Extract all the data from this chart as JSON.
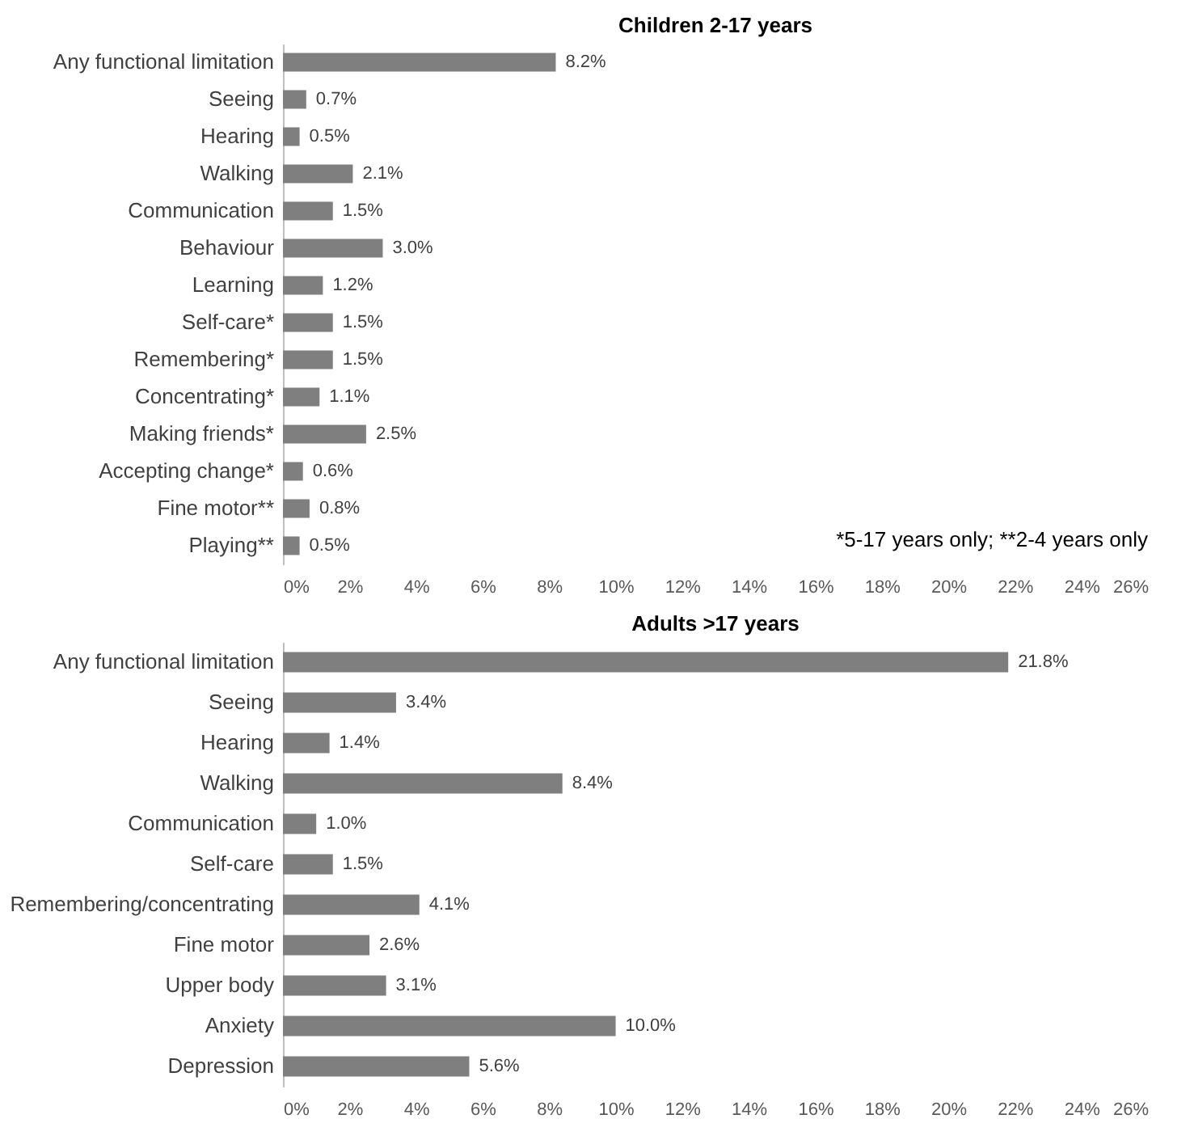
{
  "chart_data": [
    {
      "type": "bar",
      "orientation": "horizontal",
      "title": "Children 2-17 years",
      "categories": [
        "Any functional limitation",
        "Seeing",
        "Hearing",
        "Walking",
        "Communication",
        "Behaviour",
        "Learning",
        "Self-care*",
        "Remembering*",
        "Concentrating*",
        "Making friends*",
        "Accepting change*",
        "Fine motor**",
        "Playing**"
      ],
      "values": [
        8.2,
        0.7,
        0.5,
        2.1,
        1.5,
        3.0,
        1.2,
        1.5,
        1.5,
        1.1,
        2.5,
        0.6,
        0.8,
        0.5
      ],
      "value_labels": [
        "8.2%",
        "0.7%",
        "0.5%",
        "2.1%",
        "1.5%",
        "3.0%",
        "1.2%",
        "1.5%",
        "1.5%",
        "1.1%",
        "2.5%",
        "0.6%",
        "0.8%",
        "0.5%"
      ],
      "color": "#7f7f7f",
      "xlim": [
        0,
        26
      ],
      "xticks": [
        {
          "value": 0,
          "label": "0%"
        },
        {
          "value": 2,
          "label": "2%"
        },
        {
          "value": 4,
          "label": "4%"
        },
        {
          "value": 6,
          "label": "6%"
        },
        {
          "value": 8,
          "label": "8%"
        },
        {
          "value": 10,
          "label": "10%"
        },
        {
          "value": 12,
          "label": "12%"
        },
        {
          "value": 14,
          "label": "14%"
        },
        {
          "value": 16,
          "label": "16%"
        },
        {
          "value": 18,
          "label": "18%"
        },
        {
          "value": 20,
          "label": "20%"
        },
        {
          "value": 22,
          "label": "22%"
        },
        {
          "value": 24,
          "label": "24%"
        },
        {
          "value": 26,
          "label": "26%"
        }
      ],
      "annotations": [
        "*5-17 years only; **2-4 years only"
      ]
    },
    {
      "type": "bar",
      "orientation": "horizontal",
      "title": "Adults >17 years",
      "categories": [
        "Any functional limitation",
        "Seeing",
        "Hearing",
        "Walking",
        "Communication",
        "Self-care",
        "Remembering/concentrating",
        "Fine motor",
        "Upper body",
        "Anxiety",
        "Depression"
      ],
      "values": [
        21.8,
        3.4,
        1.4,
        8.4,
        1.0,
        1.5,
        4.1,
        2.6,
        3.1,
        10.0,
        5.6
      ],
      "value_labels": [
        "21.8%",
        "3.4%",
        "1.4%",
        "8.4%",
        "1.0%",
        "1.5%",
        "4.1%",
        "2.6%",
        "3.1%",
        "10.0%",
        "5.6%"
      ],
      "color": "#7f7f7f",
      "xlim": [
        0,
        26
      ],
      "xticks": [
        {
          "value": 0,
          "label": "0%"
        },
        {
          "value": 2,
          "label": "2%"
        },
        {
          "value": 4,
          "label": "4%"
        },
        {
          "value": 6,
          "label": "6%"
        },
        {
          "value": 8,
          "label": "8%"
        },
        {
          "value": 10,
          "label": "10%"
        },
        {
          "value": 12,
          "label": "12%"
        },
        {
          "value": 14,
          "label": "14%"
        },
        {
          "value": 16,
          "label": "16%"
        },
        {
          "value": 18,
          "label": "18%"
        },
        {
          "value": 20,
          "label": "20%"
        },
        {
          "value": 22,
          "label": "22%"
        },
        {
          "value": 24,
          "label": "24%"
        },
        {
          "value": 26,
          "label": "26%"
        }
      ]
    }
  ]
}
